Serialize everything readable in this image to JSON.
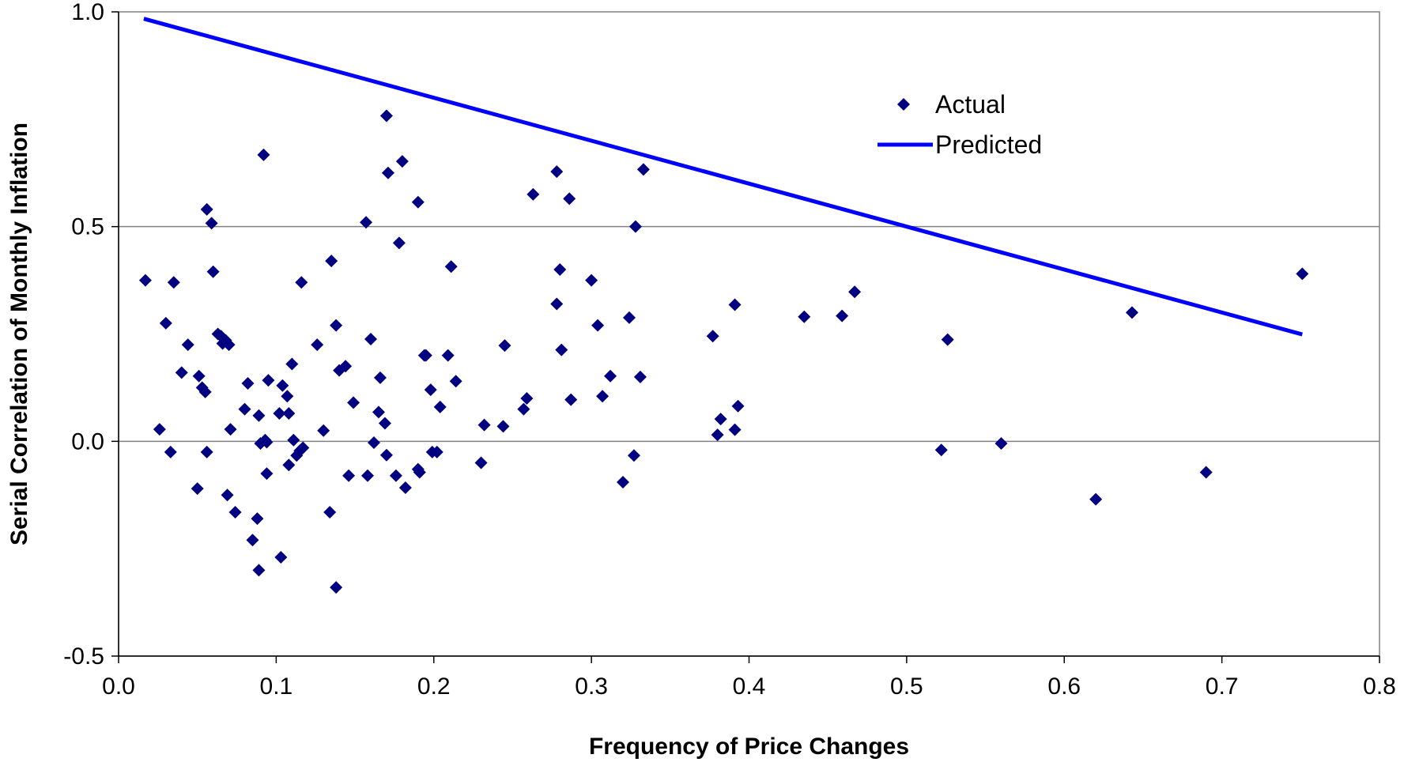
{
  "chart_data": {
    "type": "scatter",
    "xlabel": "Frequency of Price Changes",
    "ylabel": "Serial Correlation of Monthly Inflation",
    "xlim": [
      0.0,
      0.8
    ],
    "ylim": [
      -0.5,
      1.0
    ],
    "x_ticks": [
      "0.0",
      "0.1",
      "0.2",
      "0.3",
      "0.4",
      "0.5",
      "0.6",
      "0.7",
      "0.8"
    ],
    "y_ticks": [
      "-0.5",
      "0.0",
      "0.5",
      "1.0"
    ],
    "x_tick_values": [
      0.0,
      0.1,
      0.2,
      0.3,
      0.4,
      0.5,
      0.6,
      0.7,
      0.8
    ],
    "y_tick_values": [
      -0.5,
      0.0,
      0.5,
      1.0
    ],
    "grid": "horizontal",
    "legend_position": "top-right",
    "series": [
      {
        "name": "Actual",
        "kind": "scatter",
        "color": "#000080",
        "points": [
          [
            0.017,
            0.375
          ],
          [
            0.026,
            0.028
          ],
          [
            0.03,
            0.275
          ],
          [
            0.033,
            -0.025
          ],
          [
            0.035,
            0.37
          ],
          [
            0.04,
            0.16
          ],
          [
            0.044,
            0.225
          ],
          [
            0.05,
            -0.11
          ],
          [
            0.051,
            0.152
          ],
          [
            0.053,
            0.125
          ],
          [
            0.055,
            0.115
          ],
          [
            0.056,
            0.54
          ],
          [
            0.056,
            -0.025
          ],
          [
            0.059,
            0.508
          ],
          [
            0.06,
            0.395
          ],
          [
            0.063,
            0.25
          ],
          [
            0.065,
            0.245
          ],
          [
            0.066,
            0.228
          ],
          [
            0.068,
            0.235
          ],
          [
            0.069,
            -0.125
          ],
          [
            0.07,
            0.225
          ],
          [
            0.071,
            0.028
          ],
          [
            0.074,
            -0.165
          ],
          [
            0.08,
            0.075
          ],
          [
            0.082,
            0.135
          ],
          [
            0.085,
            -0.23
          ],
          [
            0.088,
            -0.18
          ],
          [
            0.089,
            0.06
          ],
          [
            0.089,
            -0.3
          ],
          [
            0.09,
            -0.005
          ],
          [
            0.092,
            0.667
          ],
          [
            0.093,
            0.003
          ],
          [
            0.094,
            -0.075
          ],
          [
            0.094,
            -0.002
          ],
          [
            0.095,
            0.142
          ],
          [
            0.102,
            0.065
          ],
          [
            0.103,
            -0.27
          ],
          [
            0.104,
            0.13
          ],
          [
            0.107,
            0.105
          ],
          [
            0.108,
            0.065
          ],
          [
            0.108,
            -0.055
          ],
          [
            0.11,
            0.18
          ],
          [
            0.111,
            0.003
          ],
          [
            0.113,
            -0.033
          ],
          [
            0.115,
            -0.022
          ],
          [
            0.116,
            0.37
          ],
          [
            0.117,
            -0.015
          ],
          [
            0.126,
            0.225
          ],
          [
            0.13,
            0.025
          ],
          [
            0.134,
            -0.165
          ],
          [
            0.135,
            0.42
          ],
          [
            0.138,
            0.27
          ],
          [
            0.138,
            -0.34
          ],
          [
            0.14,
            0.165
          ],
          [
            0.144,
            0.175
          ],
          [
            0.146,
            -0.08
          ],
          [
            0.149,
            0.09
          ],
          [
            0.157,
            0.51
          ],
          [
            0.158,
            -0.08
          ],
          [
            0.16,
            0.238
          ],
          [
            0.162,
            -0.003
          ],
          [
            0.165,
            0.068
          ],
          [
            0.166,
            0.148
          ],
          [
            0.169,
            0.042
          ],
          [
            0.17,
            -0.032
          ],
          [
            0.17,
            0.758
          ],
          [
            0.171,
            0.625
          ],
          [
            0.176,
            -0.08
          ],
          [
            0.178,
            0.462
          ],
          [
            0.18,
            0.652
          ],
          [
            0.182,
            -0.108
          ],
          [
            0.19,
            0.557
          ],
          [
            0.19,
            -0.065
          ],
          [
            0.191,
            -0.072
          ],
          [
            0.194,
            0.2
          ],
          [
            0.195,
            0.2
          ],
          [
            0.198,
            0.12
          ],
          [
            0.199,
            -0.025
          ],
          [
            0.202,
            -0.025
          ],
          [
            0.204,
            0.08
          ],
          [
            0.209,
            0.2
          ],
          [
            0.211,
            0.407
          ],
          [
            0.214,
            0.14
          ],
          [
            0.23,
            -0.05
          ],
          [
            0.232,
            0.038
          ],
          [
            0.244,
            0.035
          ],
          [
            0.245,
            0.223
          ],
          [
            0.257,
            0.075
          ],
          [
            0.259,
            0.1
          ],
          [
            0.263,
            0.575
          ],
          [
            0.278,
            0.628
          ],
          [
            0.278,
            0.32
          ],
          [
            0.28,
            0.4
          ],
          [
            0.281,
            0.213
          ],
          [
            0.286,
            0.565
          ],
          [
            0.287,
            0.097
          ],
          [
            0.3,
            0.375
          ],
          [
            0.304,
            0.27
          ],
          [
            0.307,
            0.105
          ],
          [
            0.312,
            0.152
          ],
          [
            0.32,
            -0.095
          ],
          [
            0.324,
            0.288
          ],
          [
            0.327,
            -0.033
          ],
          [
            0.328,
            0.5
          ],
          [
            0.331,
            0.15
          ],
          [
            0.333,
            0.633
          ],
          [
            0.377,
            0.245
          ],
          [
            0.38,
            0.015
          ],
          [
            0.382,
            0.052
          ],
          [
            0.391,
            0.318
          ],
          [
            0.391,
            0.027
          ],
          [
            0.393,
            0.082
          ],
          [
            0.435,
            0.29
          ],
          [
            0.459,
            0.292
          ],
          [
            0.467,
            0.348
          ],
          [
            0.522,
            -0.02
          ],
          [
            0.526,
            0.237
          ],
          [
            0.56,
            -0.005
          ],
          [
            0.62,
            -0.135
          ],
          [
            0.643,
            0.3
          ],
          [
            0.69,
            -0.072
          ],
          [
            0.751,
            0.39
          ]
        ]
      },
      {
        "name": "Predicted",
        "kind": "line",
        "color": "#0000FF",
        "x": [
          0.016,
          0.751
        ],
        "y": [
          0.984,
          0.249
        ]
      }
    ]
  }
}
